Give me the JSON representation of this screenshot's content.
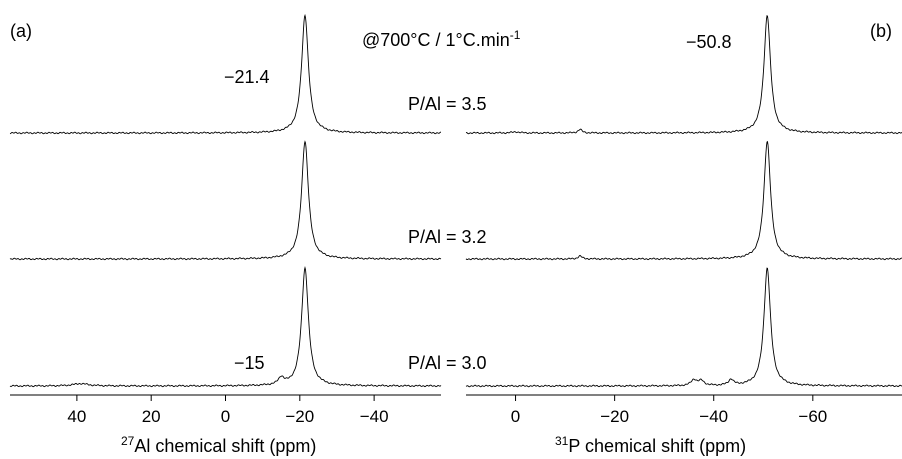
{
  "figure": {
    "condition_label": "@700°C / 1°C.min",
    "condition_superscript": "-1"
  },
  "chart_data": [
    {
      "type": "line",
      "panel_label": "(a)",
      "nucleus": "27",
      "xlabel": "Al chemical shift (ppm)",
      "xlim": [
        58,
        -58
      ],
      "x_ticks": [
        "40",
        "20",
        "0",
        "−20",
        "−40"
      ],
      "x_tick_values": [
        40,
        20,
        0,
        -20,
        -40
      ],
      "series": [
        {
          "name": "P/Al = 3.5",
          "peaks": [
            {
              "x": -21.4,
              "height": 1.0,
              "width": 1.1
            }
          ],
          "annotations": [
            "−21.4"
          ]
        },
        {
          "name": "P/Al = 3.2",
          "peaks": [
            {
              "x": -21.4,
              "height": 1.0,
              "width": 1.1
            }
          ],
          "annotations": []
        },
        {
          "name": "P/Al = 3.0",
          "peaks": [
            {
              "x": -21.4,
              "height": 1.0,
              "width": 1.1
            },
            {
              "x": -15,
              "height": 0.06,
              "width": 0.9
            },
            {
              "x": 39,
              "height": 0.02,
              "width": 2.5
            }
          ],
          "annotations": [
            "−15"
          ]
        }
      ]
    },
    {
      "type": "line",
      "panel_label": "(b)",
      "nucleus": "31",
      "xlabel": "P chemical shift (ppm)",
      "xlim": [
        10,
        -78
      ],
      "x_ticks": [
        "0",
        "−20",
        "−40",
        "−60"
      ],
      "x_tick_values": [
        0,
        -20,
        -40,
        -60
      ],
      "series": [
        {
          "name": "P/Al = 3.5",
          "peaks": [
            {
              "x": -50.8,
              "height": 1.0,
              "width": 0.8
            },
            {
              "x": -13,
              "height": 0.03,
              "width": 0.5
            },
            {
              "x": 0,
              "height": 0.01,
              "width": 0.8
            }
          ],
          "annotations": [
            "−50.8"
          ]
        },
        {
          "name": "P/Al = 3.2",
          "peaks": [
            {
              "x": -50.8,
              "height": 1.0,
              "width": 0.8
            },
            {
              "x": -13,
              "height": 0.025,
              "width": 0.5
            }
          ],
          "annotations": []
        },
        {
          "name": "P/Al = 3.0",
          "peaks": [
            {
              "x": -50.8,
              "height": 1.0,
              "width": 0.8
            },
            {
              "x": -36,
              "height": 0.05,
              "width": 0.7
            },
            {
              "x": -37.5,
              "height": 0.04,
              "width": 0.7
            },
            {
              "x": -43.5,
              "height": 0.05,
              "width": 0.6
            }
          ],
          "annotations": []
        }
      ]
    }
  ]
}
